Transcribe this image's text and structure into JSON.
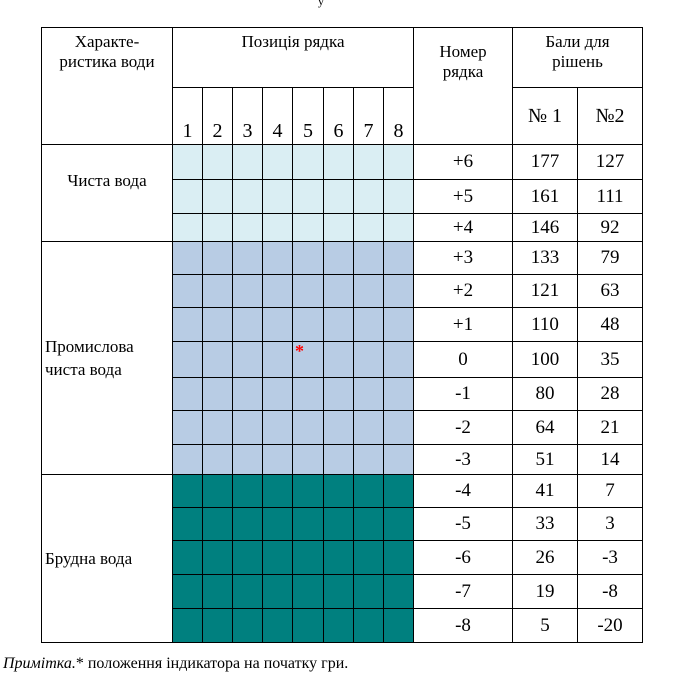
{
  "top_fragment": "у",
  "headers": {
    "characteristic": "Характе-\nристика води",
    "position": "Позиція рядка",
    "row_number": "Номер\nрядка",
    "scores": "Бали для\nрішень",
    "solution1": "№ 1",
    "solution2": "№2"
  },
  "positions": [
    "1",
    "2",
    "3",
    "4",
    "5",
    "6",
    "7",
    "8"
  ],
  "categories": [
    {
      "label": "Чиста вода",
      "color": "#daeef3",
      "rows": 3
    },
    {
      "label": "Промислова\nчиста вода",
      "color": "#b8cce4",
      "rows": 7
    },
    {
      "label": "Брудна вода",
      "color": "#00807f",
      "rows": 5
    }
  ],
  "rows": [
    {
      "number": "+6",
      "s1": "177",
      "s2": "127"
    },
    {
      "number": "+5",
      "s1": "161",
      "s2": "111"
    },
    {
      "number": "+4",
      "s1": "146",
      "s2": "92"
    },
    {
      "number": "+3",
      "s1": "133",
      "s2": "79"
    },
    {
      "number": "+2",
      "s1": "121",
      "s2": "63"
    },
    {
      "number": "+1",
      "s1": "110",
      "s2": "48"
    },
    {
      "number": "0",
      "s1": "100",
      "s2": "35"
    },
    {
      "number": "-1",
      "s1": "80",
      "s2": "28"
    },
    {
      "number": "-2",
      "s1": "64",
      "s2": "21"
    },
    {
      "number": "-3",
      "s1": "51",
      "s2": "14"
    },
    {
      "number": "-4",
      "s1": "41",
      "s2": "7"
    },
    {
      "number": "-5",
      "s1": "33",
      "s2": "3"
    },
    {
      "number": "-6",
      "s1": "26",
      "s2": "-3"
    },
    {
      "number": "-7",
      "s1": "19",
      "s2": "-8"
    },
    {
      "number": "-8",
      "s1": "5",
      "s2": "-20"
    }
  ],
  "indicator": {
    "symbol": "*",
    "row": 6,
    "position": 5,
    "color": "#ff0000"
  },
  "note": {
    "label": "Примітка.",
    "text": "* положення індикатора на початку гри."
  }
}
